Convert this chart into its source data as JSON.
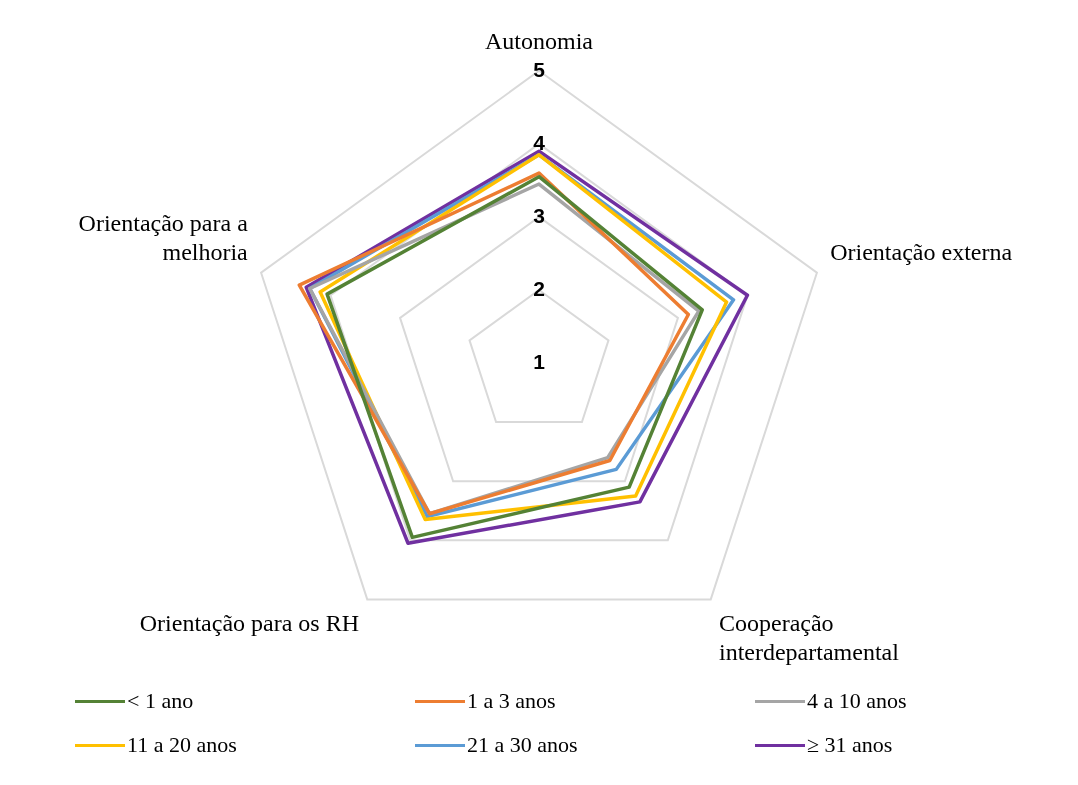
{
  "chart_data": {
    "type": "radar",
    "categories": [
      "Autonomia",
      "Orientação externa",
      "Cooperação interdepartamental",
      "Orientação para os RH",
      "Orientação para a melhoria"
    ],
    "ylim": [
      1,
      5
    ],
    "yticks": [
      1,
      2,
      3,
      4,
      5
    ],
    "grid": true,
    "legend": "bottom",
    "marker": "none",
    "series": [
      {
        "name": "< 1 ano",
        "color": "#548235",
        "values": [
          3.55,
          3.35,
          3.1,
          3.95,
          4.05
        ]
      },
      {
        "name": "1 a 3 anos",
        "color": "#ed7d31",
        "values": [
          3.6,
          3.15,
          2.65,
          3.55,
          4.45
        ]
      },
      {
        "name": "4 a 10 anos",
        "color": "#a5a5a5",
        "values": [
          3.45,
          3.3,
          2.6,
          3.55,
          4.3
        ]
      },
      {
        "name": "11 a 20 anos",
        "color": "#ffc000",
        "values": [
          3.85,
          3.7,
          3.25,
          3.65,
          4.15
        ]
      },
      {
        "name": "21 a 30 anos",
        "color": "#5b9bd5",
        "values": [
          3.85,
          3.8,
          2.8,
          3.6,
          4.3
        ]
      },
      {
        "name": "≥ 31 anos",
        "color": "#7030a0",
        "values": [
          3.9,
          4.0,
          3.35,
          4.05,
          4.35
        ]
      }
    ]
  }
}
